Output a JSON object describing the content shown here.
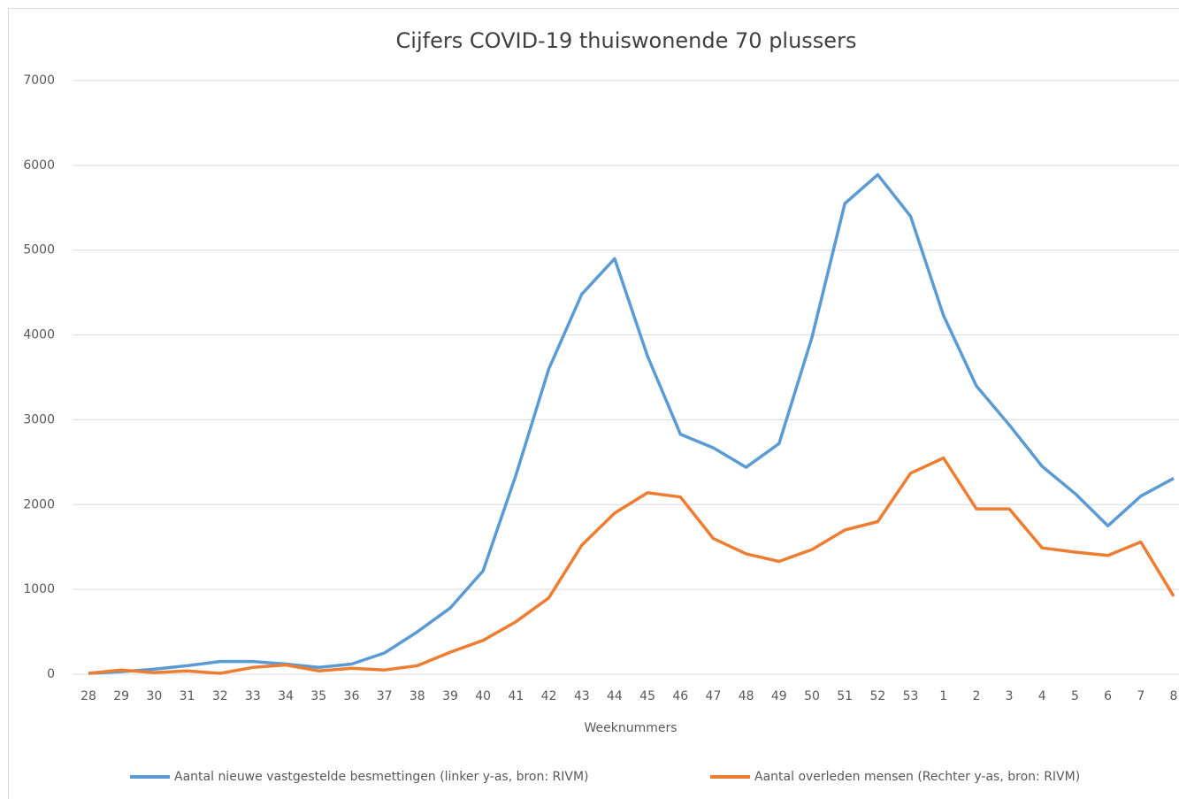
{
  "chart_data": {
    "type": "line",
    "title": "Cijfers COVID-19 thuiswonende 70 plussers",
    "x_label": "Weeknummers",
    "categories": [
      "28",
      "29",
      "30",
      "31",
      "32",
      "33",
      "34",
      "35",
      "36",
      "37",
      "38",
      "39",
      "40",
      "41",
      "42",
      "43",
      "44",
      "45",
      "46",
      "47",
      "48",
      "49",
      "50",
      "51",
      "52",
      "53",
      "1",
      "2",
      "3",
      "4",
      "5",
      "6",
      "7",
      "8"
    ],
    "series": [
      {
        "name": "Aantal nieuwe vastgestelde besmettingen (linker y-as, bron: RIVM)",
        "color": "#5b9bd5",
        "values": [
          10,
          30,
          60,
          100,
          150,
          150,
          120,
          80,
          120,
          250,
          500,
          780,
          1220,
          2350,
          3600,
          4480,
          4900,
          3750,
          2830,
          2670,
          2440,
          2720,
          3970,
          5550,
          5890,
          5400,
          4230,
          3400,
          2940,
          2450,
          2130,
          1750,
          2100,
          2310
        ]
      },
      {
        "name": "Aantal overleden mensen (Rechter y-as, bron: RIVM)",
        "color": "#ed7d31",
        "values": [
          10,
          50,
          20,
          40,
          10,
          80,
          110,
          40,
          70,
          50,
          100,
          260,
          400,
          620,
          900,
          1520,
          1900,
          2140,
          2090,
          1600,
          1420,
          1330,
          1470,
          1700,
          1800,
          2370,
          2550,
          1950,
          1950,
          1490,
          1440,
          1400,
          1560,
          920
        ]
      }
    ],
    "ylim": [
      0,
      7000
    ],
    "yticks": [
      0,
      1000,
      2000,
      3000,
      4000,
      5000,
      6000,
      7000
    ],
    "grid": true
  }
}
